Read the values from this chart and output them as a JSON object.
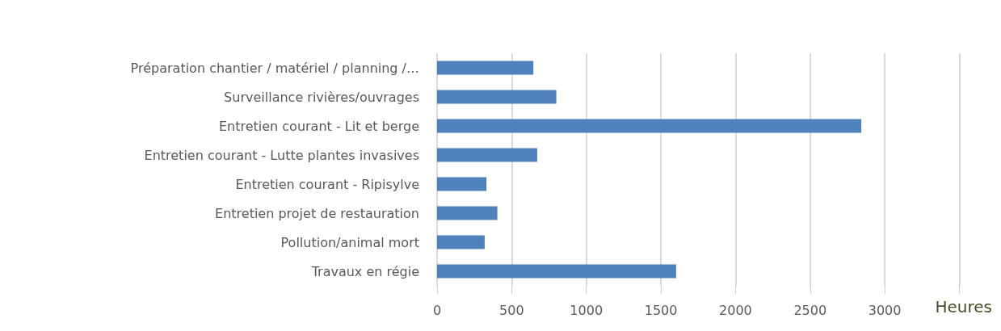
{
  "chart_data": {
    "type": "bar",
    "orientation": "horizontal",
    "xlabel": "Heures",
    "categories": [
      "Préparation chantier / matériel / planning /…",
      "Surveillance rivières/ouvrages",
      "Entretien courant - Lit et berge",
      "Entretien courant - Lutte plantes invasives",
      "Entretien courant - Ripisylve",
      "Entretien projet de restauration",
      "Pollution/animal mort",
      "Travaux en régie"
    ],
    "values": [
      645,
      799,
      2843,
      671,
      331,
      404,
      319,
      1602
    ],
    "color": "#4f81bd",
    "xlim": [
      0,
      3500
    ],
    "xticks": [
      0,
      500,
      1000,
      1500,
      2000,
      2500,
      3000,
      {
        "value": 3500,
        "label": null
      }
    ],
    "grid": "x"
  }
}
